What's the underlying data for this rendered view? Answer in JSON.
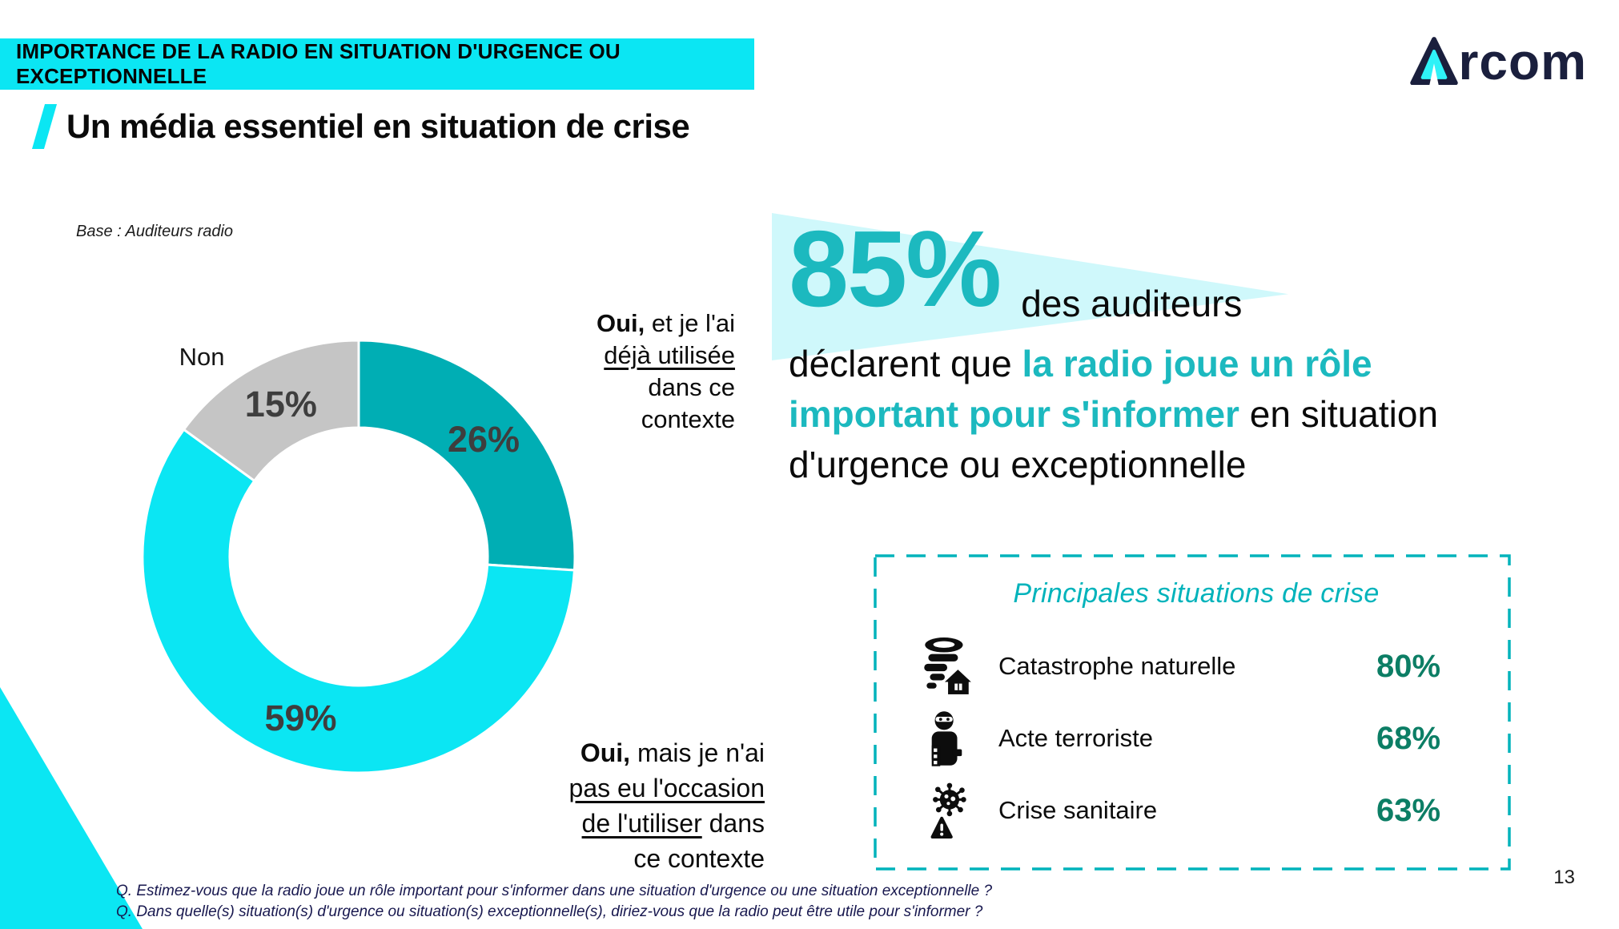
{
  "banner": {
    "text": "IMPORTANCE DE LA RADIO EN SITUATION D'URGENCE OU EXCEPTIONNELLE"
  },
  "logo": {
    "name": "Arcom",
    "wordmark_rest": "rcom"
  },
  "title": {
    "text": "Un média essentiel en situation de crise"
  },
  "base_note": "Base : Auditeurs radio",
  "chart_data": [
    {
      "type": "pie",
      "donut": true,
      "base": "Auditeurs radio",
      "start_angle_deg": -90,
      "direction": "clockwise",
      "label_color": "#3E3E3E",
      "segments": [
        {
          "name": "oui-deja-utilisee",
          "label": "Oui, et je l'ai déjà utilisée dans ce contexte",
          "value": 26,
          "color": "#00AEB4"
        },
        {
          "name": "oui-pas-occasion",
          "label": "Oui, mais je n'ai pas eu l'occasion de l'utiliser dans ce contexte",
          "value": 59,
          "color": "#0BE6F3"
        },
        {
          "name": "non",
          "label": "Non",
          "value": 15,
          "color": "#C5C5C5"
        }
      ]
    },
    {
      "type": "table",
      "title": "Principales situations de crise",
      "value_color": "#0C7E65",
      "rows": [
        {
          "icon": "tornado-icon",
          "label": "Catastrophe naturelle",
          "value": "80%"
        },
        {
          "icon": "terrorist-icon",
          "label": "Acte terroriste",
          "value": "68%"
        },
        {
          "icon": "virus-icon",
          "label": "Crise sanitaire",
          "value": "63%"
        }
      ]
    }
  ],
  "donut_labels": {
    "non": "Non",
    "used": {
      "bold": "Oui,",
      "after_bold": " et je l'ai",
      "underlined": "déjà utilisée",
      "line3": "dans ce",
      "line4": "contexte"
    },
    "not_used": {
      "bold": "Oui,",
      "after_bold": " mais je n'ai",
      "underlined_line2": "pas eu l'occasion",
      "underlined_line3": "de l'utiliser",
      "line3_rest": " dans",
      "line4": "ce contexte"
    }
  },
  "callout": {
    "stat": "85%",
    "after_stat": "des auditeurs",
    "l2_black": "déclarent que ",
    "l2_teal": "la radio joue un rôle",
    "l3_teal": "important pour s'informer",
    "l3_black": " en situation",
    "l4_black": "d'urgence ou exceptionnelle",
    "accent_color": "#1CB9BF"
  },
  "footnotes": [
    "Q. Estimez-vous que la radio joue un rôle important pour s'informer dans une situation d'urgence ou une situation exceptionnelle ?",
    "Q. Dans quelle(s) situation(s) d'urgence ou situation(s) exceptionnelle(s), diriez-vous que la radio peut être utile pour s'informer ?"
  ],
  "page_number": "13",
  "colors": {
    "cyan": "#0BE6F3",
    "teal_segment": "#00AEB4",
    "gray_segment": "#C5C5C5",
    "accent_teal": "#1CB9BF",
    "box_teal": "#00B3BB",
    "value_green": "#0C7E65",
    "logo_navy": "#1A1F3D",
    "pale_triangle": "#CFF8FB"
  }
}
